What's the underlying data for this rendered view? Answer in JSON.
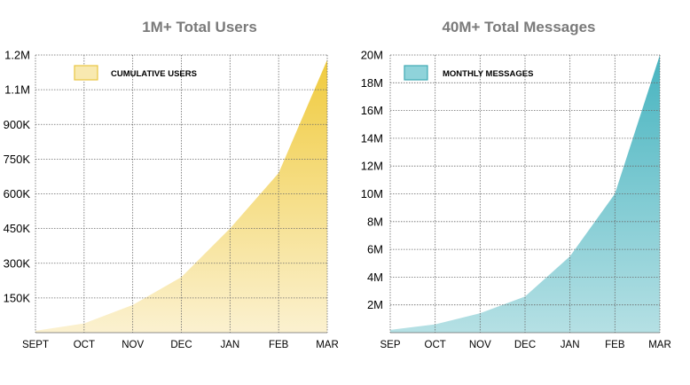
{
  "chart_data": [
    {
      "type": "area",
      "title": "1M+ Total Users",
      "xlabel": "",
      "ylabel": "",
      "categories": [
        "SEPT",
        "OCT",
        "NOV",
        "DEC",
        "JAN",
        "FEB",
        "MAR"
      ],
      "series": [
        {
          "name": "CUMULATIVE USERS",
          "values": [
            8000,
            40000,
            120000,
            240000,
            450000,
            690000,
            1180000
          ]
        }
      ],
      "ylim": [
        0,
        1200000
      ],
      "yticks": [
        150000,
        300000,
        450000,
        600000,
        750000,
        900000,
        1050000,
        1200000
      ],
      "ytick_labels": [
        "150K",
        "300K",
        "450K",
        "600K",
        "750K",
        "900K",
        "1.1M",
        "1.2M"
      ],
      "grid": true,
      "legend_position": "top-left",
      "colors": {
        "top": "#f0cb3e",
        "bottom": "#fbf1d0",
        "legend_fill": "#f8e9b0",
        "legend_border": "#e9c541"
      }
    },
    {
      "type": "area",
      "title": "40M+ Total Messages",
      "xlabel": "",
      "ylabel": "",
      "categories": [
        "SEP",
        "OCT",
        "NOV",
        "DEC",
        "JAN",
        "FEB",
        "MAR"
      ],
      "series": [
        {
          "name": "MONTHLY MESSAGES",
          "values": [
            200000,
            600000,
            1400000,
            2600000,
            5500000,
            10000000,
            20000000
          ]
        }
      ],
      "ylim": [
        0,
        20000000
      ],
      "yticks": [
        2000000,
        4000000,
        6000000,
        8000000,
        10000000,
        12000000,
        14000000,
        16000000,
        18000000,
        20000000
      ],
      "ytick_labels": [
        "2M",
        "4M",
        "6M",
        "8M",
        "10M",
        "12M",
        "14M",
        "16M",
        "18M",
        "20M"
      ],
      "grid": true,
      "legend_position": "top-left",
      "colors": {
        "top": "#47b4c0",
        "bottom": "#b5e0e4",
        "legend_fill": "#8fd3da",
        "legend_border": "#3fa9b4"
      }
    }
  ]
}
